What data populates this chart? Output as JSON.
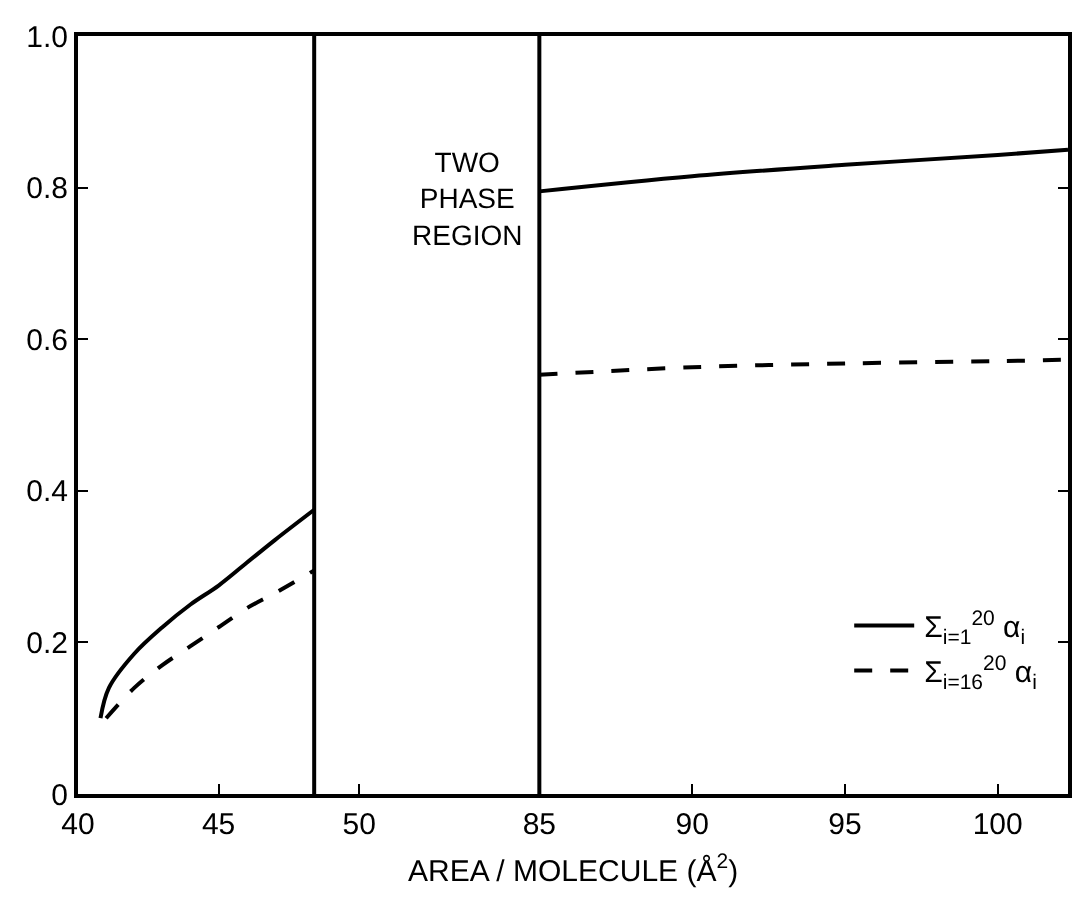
{
  "chart_data": [
    {
      "type": "line",
      "x": [
        40.8,
        41.1,
        42,
        43,
        44,
        45,
        46,
        47,
        48.4
      ],
      "series": [
        {
          "color": "#000000",
          "line_style": "solid",
          "values": [
            0.1,
            0.14,
            0.185,
            0.22,
            0.25,
            0.275,
            0.305,
            0.335,
            0.375
          ]
        },
        {
          "color": "#000000",
          "line_style": "dashed",
          "x": [
            41.0,
            42,
            43,
            44,
            45,
            46,
            47,
            48.4
          ],
          "values": [
            0.1,
            0.14,
            0.17,
            0.195,
            0.22,
            0.245,
            0.265,
            0.295
          ]
        }
      ],
      "xlim": [
        40,
        53.8
      ],
      "xticks": [
        40,
        45,
        50
      ],
      "ylim": [
        0,
        1
      ],
      "yticks": [
        {
          "value": 0,
          "label": "0"
        },
        0.2,
        0.4,
        0.6,
        0.8,
        {
          "value": 1,
          "label": "1.0"
        }
      ],
      "ref_lines": [
        {
          "axis": "x",
          "value": 48.4,
          "color": "#000000"
        }
      ],
      "annotations": [
        "TWO\nPHASE\nREGION"
      ],
      "legend": false
    },
    {
      "type": "line",
      "x": [
        85,
        90,
        95,
        100,
        102.3
      ],
      "series": [
        {
          "name": "Σ$_{i=1}$$^{20}$ α$_{i}$",
          "color": "#000000",
          "line_style": "solid",
          "values": [
            0.795,
            0.815,
            0.83,
            0.843,
            0.85
          ]
        },
        {
          "name": "Σ$_{i=16}$$^{20}$ α$_{i}$",
          "color": "#000000",
          "line_style": "dashed",
          "values": [
            0.553,
            0.563,
            0.568,
            0.571,
            0.573
          ]
        }
      ],
      "xlim": [
        82.6,
        102.3
      ],
      "xticks": [
        85,
        90,
        95,
        100
      ],
      "ylim": [
        0,
        1
      ],
      "yticks": [
        0,
        0.2,
        0.4,
        0.6,
        0.8,
        1
      ],
      "tick_labels": "x",
      "ref_lines": [
        {
          "axis": "x",
          "value": 85,
          "color": "#000000"
        }
      ],
      "xlabel": "AREA / MOLECULE (Å$^{2}$)",
      "legend": "bottom right"
    }
  ]
}
